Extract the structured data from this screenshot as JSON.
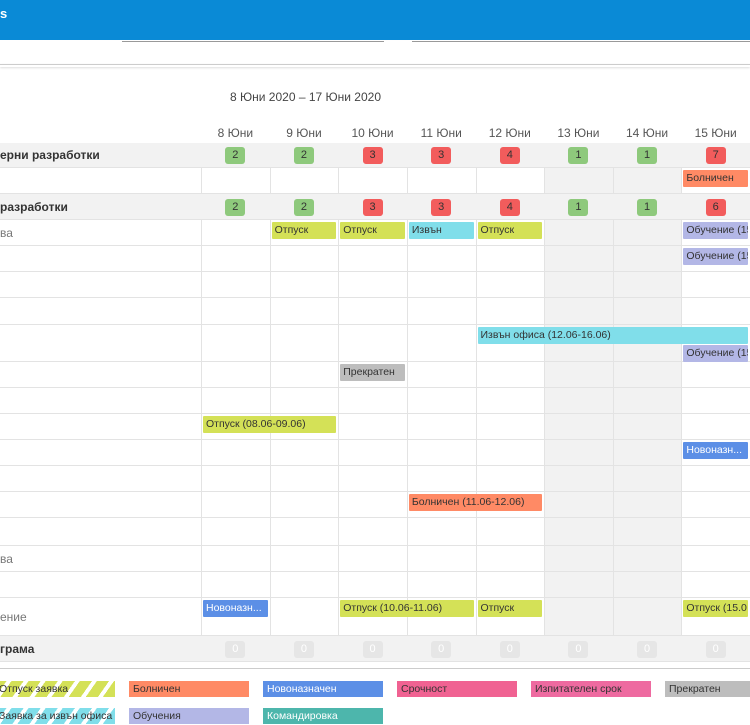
{
  "header": {
    "title": "s"
  },
  "date_range": "8 Юни 2020 – 17 Юни 2020",
  "columns": [
    "8 Юни",
    "9 Юни",
    "10 Юни",
    "11 Юни",
    "12 Юни",
    "13 Юни",
    "14 Юни",
    "15 Юни"
  ],
  "weekend_columns": [
    5,
    6
  ],
  "rows": [
    {
      "kind": "group",
      "label": "ерни разработки",
      "badges": [
        2,
        2,
        3,
        3,
        4,
        1,
        1,
        7
      ]
    },
    {
      "kind": "member",
      "events": [
        {
          "label": "Болничен",
          "col": 7,
          "span": 1,
          "color": "#ff8a65"
        }
      ]
    },
    {
      "kind": "group",
      "label": "разработки",
      "badges": [
        2,
        2,
        3,
        3,
        4,
        1,
        1,
        6
      ]
    },
    {
      "kind": "member",
      "label": "ва",
      "events": [
        {
          "label": "Отпуск",
          "col": 1,
          "span": 1,
          "color": "#d4e157"
        },
        {
          "label": "Отпуск",
          "col": 2,
          "span": 1,
          "color": "#d4e157"
        },
        {
          "label": "Извън",
          "col": 3,
          "span": 1,
          "color": "#80deea"
        },
        {
          "label": "Отпуск",
          "col": 4,
          "span": 1,
          "color": "#d4e157"
        },
        {
          "label": "Обучение (15",
          "col": 7,
          "span": 1,
          "color": "#b3b7e6"
        }
      ]
    },
    {
      "kind": "member",
      "events": [
        {
          "label": "Обучение (15",
          "col": 7,
          "span": 1,
          "color": "#b3b7e6"
        }
      ]
    },
    {
      "kind": "member",
      "events": []
    },
    {
      "kind": "member",
      "events": []
    },
    {
      "kind": "member",
      "events": [
        {
          "label": "Извън офиса (12.06-16.06)",
          "col": 4,
          "span": 4,
          "color": "#80deea"
        },
        {
          "label": "Обучение (15",
          "col": 7,
          "span": 1,
          "color": "#b3b7e6"
        }
      ]
    },
    {
      "kind": "member",
      "events": [
        {
          "label": "Прекратен",
          "col": 2,
          "span": 1,
          "color": "#bdbdbd"
        }
      ]
    },
    {
      "kind": "member",
      "events": []
    },
    {
      "kind": "member",
      "events": [
        {
          "label": "Отпуск (08.06-09.06)",
          "col": 0,
          "span": 2,
          "color": "#d4e157"
        }
      ]
    },
    {
      "kind": "member",
      "events": [
        {
          "label": "Новоназн...",
          "col": 7,
          "span": 1,
          "color": "#5c8fe6"
        }
      ]
    },
    {
      "kind": "member",
      "events": []
    },
    {
      "kind": "member",
      "events": [
        {
          "label": "Болничен (11.06-12.06)",
          "col": 3,
          "span": 2,
          "color": "#ff8a65"
        }
      ]
    },
    {
      "kind": "member",
      "events": []
    },
    {
      "kind": "member",
      "label": "ва",
      "events": []
    },
    {
      "kind": "member",
      "events": []
    },
    {
      "kind": "member",
      "label": "ение",
      "events": [
        {
          "label": "Новоназн...",
          "col": 0,
          "span": 1,
          "color": "#5c8fe6"
        },
        {
          "label": "Отпуск (10.06-11.06)",
          "col": 2,
          "span": 2,
          "color": "#d4e157"
        },
        {
          "label": "Отпуск",
          "col": 4,
          "span": 1,
          "color": "#d4e157"
        },
        {
          "label": "Отпуск (15.0",
          "col": 7,
          "span": 1,
          "color": "#d4e157"
        }
      ]
    },
    {
      "kind": "group",
      "label": "грама",
      "badges": [
        0,
        0,
        0,
        0,
        0,
        0,
        0,
        0
      ]
    }
  ],
  "legend": [
    {
      "label": "Отпуск заявка",
      "color": "#d4e157",
      "striped": true
    },
    {
      "label": "Болничен",
      "color": "#ff8a65",
      "striped": false
    },
    {
      "label": "Новоназначен",
      "color": "#5c8fe6",
      "striped": false
    },
    {
      "label": "Срочност",
      "color": "#f06292",
      "striped": false
    },
    {
      "label": "Изпитателен срок",
      "color": "#ee6aa0",
      "striped": false
    },
    {
      "label": "Прекратен",
      "color": "#bdbdbd",
      "striped": false
    },
    {
      "label": "Заявка за извън офиса",
      "color": "#80deea",
      "striped": true
    },
    {
      "label": "Обучения",
      "color": "#b3b7e6",
      "striped": false
    },
    {
      "label": "Командировка",
      "color": "#4db6ac",
      "striped": false
    }
  ]
}
